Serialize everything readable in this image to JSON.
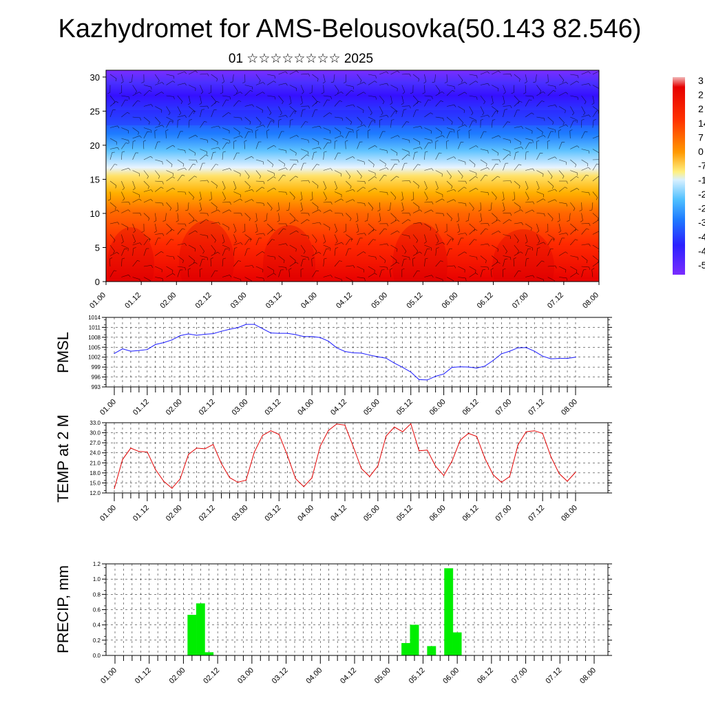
{
  "header": {
    "title": "Kazhydromet for AMS-Belousovka(50.143 82.546)",
    "subtitle": "01 ☆☆☆☆☆☆☆☆ 2025"
  },
  "colors": {
    "pmsl_line": "#1a1aff",
    "temp_line": "#e00000",
    "precip_bar": "#00ee00",
    "colorbar": [
      "#f2b8b8",
      "#e60000",
      "#ff3300",
      "#ff7700",
      "#ffb000",
      "#ffe060",
      "#fff8a0",
      "#cfeeff",
      "#55c8ff",
      "#1e90ff",
      "#2a3cff",
      "#3a10ff",
      "#7a2cff"
    ]
  },
  "chart_data": [
    {
      "type": "heatmap",
      "title": "",
      "xlabel": "",
      "ylabel": "",
      "ylim": [
        0,
        31
      ],
      "yticks": [
        "0",
        "5",
        "10",
        "15",
        "20",
        "25",
        "30"
      ],
      "xticks": [
        "01.00",
        "01.12",
        "02.00",
        "02.12",
        "03.00",
        "03.12",
        "04.00",
        "04.12",
        "05.00",
        "05.12",
        "06.00",
        "06.12",
        "07.00",
        "07.12",
        "08.00"
      ],
      "colorbar_labels": [
        "3",
        "2",
        "2",
        "14",
        "7",
        "0",
        "-7",
        "-1",
        "-2",
        "-2",
        "-3",
        "-4",
        "-4",
        "-5"
      ],
      "overlay": "wind barbs"
    },
    {
      "type": "line",
      "ylabel": "PMSL",
      "ylim": [
        993,
        1014
      ],
      "yticks": [
        "993",
        "996",
        "999",
        "1002",
        "1005",
        "1008",
        "1011",
        "1014"
      ],
      "xticks": [
        "01.00",
        "01.12",
        "02.00",
        "02.12",
        "03.00",
        "03.12",
        "04.00",
        "04.12",
        "05.00",
        "05.12",
        "06.00",
        "06.12",
        "07.00",
        "07.12",
        "08.00"
      ],
      "grid": true,
      "x": [
        0,
        3,
        6,
        9,
        12,
        15,
        18,
        21,
        24,
        27,
        30,
        33,
        36,
        39,
        42,
        45,
        48,
        51,
        54,
        57,
        60,
        63,
        66,
        69,
        72,
        75,
        78,
        81,
        84,
        87,
        90,
        93,
        96,
        99,
        102,
        105,
        108,
        111,
        114,
        117,
        120,
        123,
        126,
        129,
        132,
        135,
        138,
        141,
        144,
        147,
        150,
        153,
        156,
        159,
        162,
        165,
        168
      ],
      "values": [
        1003.1,
        1004.5,
        1003.8,
        1004.0,
        1004.3,
        1005.8,
        1006.4,
        1007.2,
        1008.5,
        1009.0,
        1008.6,
        1008.9,
        1009.1,
        1009.8,
        1010.4,
        1010.9,
        1011.9,
        1011.9,
        1010.6,
        1009.3,
        1009.2,
        1009.2,
        1008.8,
        1008.2,
        1008.2,
        1007.9,
        1006.8,
        1004.8,
        1003.7,
        1003.3,
        1003.2,
        1002.6,
        1002.1,
        1001.7,
        1000.2,
        998.9,
        997.5,
        995.2,
        995.1,
        996.2,
        996.9,
        998.9,
        999.1,
        999.0,
        998.7,
        999.3,
        1001.0,
        1003.0,
        1003.8,
        1004.8,
        1004.9,
        1003.8,
        1002.3,
        1001.5,
        1001.6,
        1001.6,
        1002.0
      ]
    },
    {
      "type": "line",
      "ylabel": "TEMP at 2 M",
      "ylim": [
        12.0,
        33.0
      ],
      "yticks": [
        "12.0",
        "15.0",
        "18.0",
        "21.0",
        "24.0",
        "27.0",
        "30.0",
        "33.0"
      ],
      "xticks": [
        "01.00",
        "01.12",
        "02.00",
        "02.12",
        "03.00",
        "03.12",
        "04.00",
        "04.12",
        "05.00",
        "05.12",
        "06.00",
        "06.12",
        "07.00",
        "07.12",
        "08.00"
      ],
      "grid": true,
      "x": [
        0,
        3,
        6,
        9,
        12,
        15,
        18,
        21,
        24,
        27,
        30,
        33,
        36,
        39,
        42,
        45,
        48,
        51,
        54,
        57,
        60,
        63,
        66,
        69,
        72,
        75,
        78,
        81,
        84,
        87,
        90,
        93,
        96,
        99,
        102,
        105,
        108,
        111,
        114,
        117,
        120,
        123,
        126,
        129,
        132,
        135,
        138,
        141,
        144,
        147,
        150,
        153,
        156,
        159,
        162,
        165,
        168
      ],
      "values": [
        13.3,
        22.0,
        25.4,
        24.4,
        24.3,
        19.0,
        15.5,
        13.4,
        16.2,
        23.5,
        25.4,
        25.2,
        26.5,
        20.8,
        16.6,
        15.2,
        15.8,
        24.2,
        29.2,
        30.6,
        29.5,
        23.3,
        16.3,
        13.9,
        16.5,
        26.0,
        30.7,
        32.6,
        32.3,
        25.9,
        19.3,
        16.9,
        20.1,
        29.0,
        31.7,
        30.3,
        32.7,
        24.6,
        24.8,
        20.0,
        17.2,
        21.5,
        27.8,
        29.8,
        28.9,
        22.3,
        17.4,
        15.2,
        16.9,
        26.3,
        30.3,
        30.6,
        29.8,
        22.9,
        17.8,
        15.5,
        18.2
      ]
    },
    {
      "type": "bar",
      "ylabel": "PRECIP, mm",
      "ylim": [
        0.0,
        1.2
      ],
      "yticks": [
        "0.0",
        "0.2",
        "0.4",
        "0.6",
        "0.8",
        "1.0",
        "1.2"
      ],
      "xticks": [
        "01.00",
        "01.12",
        "02.00",
        "02.12",
        "03.00",
        "03.12",
        "04.00",
        "04.12",
        "05.00",
        "05.12",
        "06.00",
        "06.12",
        "07.00",
        "07.12",
        "08.00"
      ],
      "grid": true,
      "x": [
        27,
        30,
        33,
        102,
        105,
        111,
        117,
        120
      ],
      "values": [
        0.53,
        0.68,
        0.04,
        0.16,
        0.4,
        0.12,
        1.14,
        0.3
      ],
      "bar_width_hours": 3
    }
  ]
}
